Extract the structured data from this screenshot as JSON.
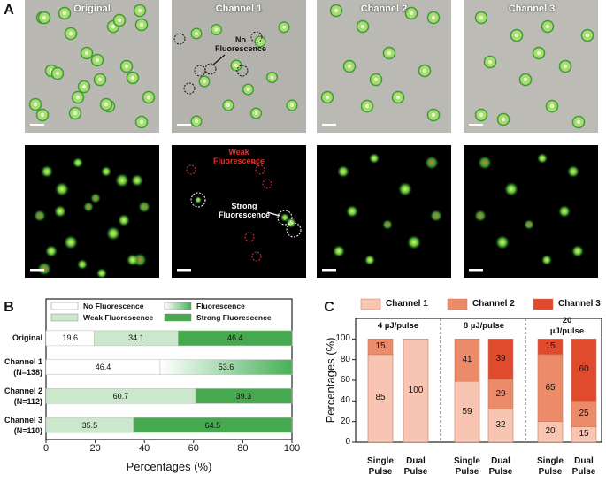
{
  "panel_labels": [
    "A",
    "B",
    "C"
  ],
  "panel_a": {
    "columns": [
      "Original",
      "Channel 1",
      "Channel 2",
      "Channel 3"
    ],
    "annotations": [
      "No\nFluorescence",
      "Weak\nFluorescence",
      "Strong\nFluorescence"
    ]
  },
  "chart_data": [
    {
      "type": "stacked_barh",
      "categories": [
        "Original",
        "Channel 1\n(N=138)",
        "Channel 2\n(N=112)",
        "Channel 3\n(N=110)"
      ],
      "series": [
        {
          "name": "No Fluorescence",
          "color": "#ffffff",
          "values": [
            19.6,
            46.4,
            null,
            null
          ]
        },
        {
          "name": "Weak Fluorescence",
          "color": "#cbe8cc",
          "values": [
            34.1,
            null,
            60.7,
            35.5
          ]
        },
        {
          "name": "Fluorescence",
          "color": [
            "#ffffff",
            "#47b057"
          ],
          "values": [
            null,
            53.6,
            null,
            null
          ]
        },
        {
          "name": "Strong Fluorescence",
          "color": "#47a94f",
          "values": [
            46.4,
            null,
            39.3,
            64.5
          ]
        }
      ],
      "xlabel": "Percentages (%)",
      "xlim": [
        0,
        100
      ],
      "xticks": [
        0,
        20,
        40,
        60,
        80,
        100
      ]
    },
    {
      "type": "stacked_bar",
      "groups": [
        "4 µJ/pulse",
        "8 µJ/pulse",
        "20 µJ/pulse"
      ],
      "categories": [
        "Single\nPulse",
        "Dual\nPulse",
        "Single\nPulse",
        "Dual\nPulse",
        "Single\nPulse",
        "Dual\nPulse"
      ],
      "series": [
        {
          "name": "Channel 1",
          "color": "#f7c5b2",
          "values": [
            85,
            100,
            59,
            32,
            20,
            15
          ]
        },
        {
          "name": "Channel 2",
          "color": "#ec8b69",
          "values": [
            15,
            null,
            41,
            29,
            65,
            25
          ]
        },
        {
          "name": "Channel 3",
          "color": "#e04b2e",
          "values": [
            null,
            null,
            null,
            39,
            15,
            60
          ]
        }
      ],
      "ylabel": "Percentages (%)",
      "ylim": [
        0,
        120
      ],
      "yticks": [
        0,
        20,
        40,
        60,
        80,
        100
      ]
    }
  ]
}
